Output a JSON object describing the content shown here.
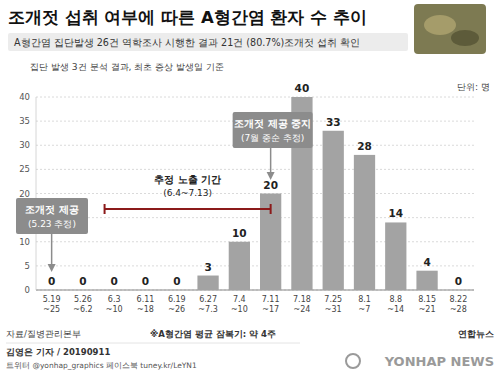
{
  "chart_data": {
    "type": "bar",
    "title": "조개젓 섭취 여부에 따른 A형간염 환자 수 추이",
    "subtitle": "A형간염 집단발생 26건 역학조사 시행한 결과 21건 (80.7%)조개젓 섭취 확인",
    "note": "집단 발생 3건 분석 결과, 최초 증상 발생일 기준",
    "unit": "단위: 명",
    "categories": [
      "5.19 ~25",
      "5.26 ~6.2",
      "6.3 ~10",
      "6.11 ~18",
      "6.19 ~26",
      "6.27 ~7.3",
      "7.4 ~10",
      "7.11 ~17",
      "7.18 ~24",
      "7.25 ~31",
      "8.1 ~7",
      "8.8 ~14",
      "8.15 ~21",
      "8.22 ~28"
    ],
    "values": [
      0,
      0,
      0,
      0,
      0,
      3,
      10,
      20,
      40,
      33,
      28,
      14,
      4,
      0
    ],
    "color": "#a3a3a3",
    "ylim": [
      0,
      40
    ],
    "yticks": [
      0,
      5,
      10,
      15,
      20,
      25,
      30,
      35,
      40
    ],
    "grid": true,
    "data_labels": true,
    "annotations": [
      {
        "title": "조개젓 제공",
        "detail": "(5.23 추정)"
      },
      {
        "title": "조개젓 제공 중지",
        "detail": "(7월 중순 추정)"
      },
      {
        "title": "추정 노출 기간",
        "detail": "(6.4~7.13)"
      }
    ],
    "source": "자료/질병관리본부",
    "footnote": "※A형간염 평균 잠복기: 약 4주",
    "credit": "김영은 기자 / 20190911",
    "social": "트위터 @yonhap_graphics 페이스북 tuney.kr/LeYN1",
    "logo": "연합뉴스",
    "watermark": "YONHAP NEWS"
  }
}
